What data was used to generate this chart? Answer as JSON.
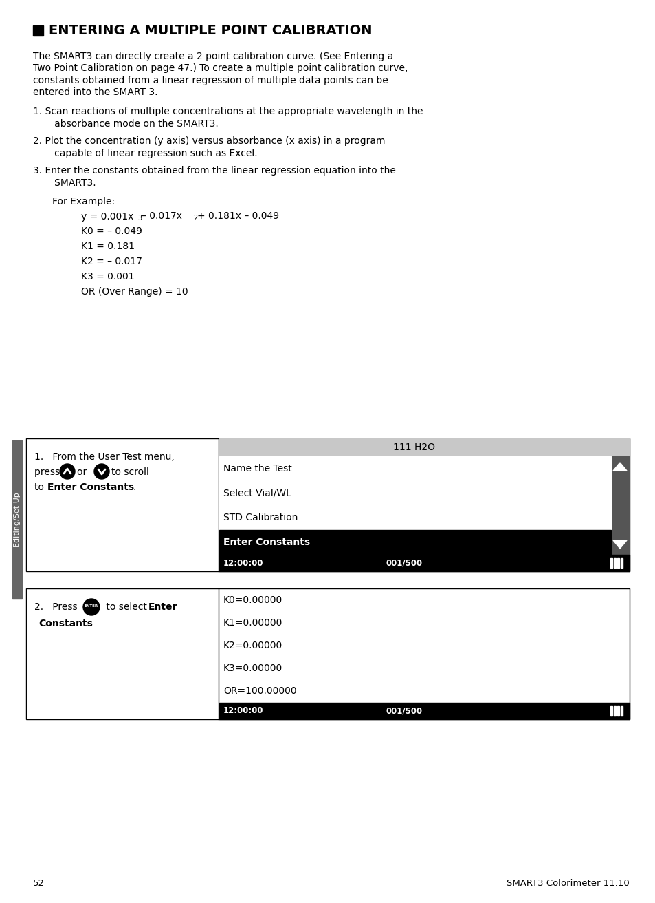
{
  "title": "ENTERING A MULTIPLE POINT CALIBRATION",
  "bg_color": "#ffffff",
  "text_color": "#000000",
  "page_number": "52",
  "footer_right": "SMART3 Colorimeter 11.10",
  "sidebar_label": "Editing/Set Up",
  "intro_text": [
    "The SMART3 can directly create a 2 point calibration curve. (See Entering a",
    "Two Point Calibration on page 47.) To create a multiple point calibration curve,",
    "constants obtained from a linear regression of multiple data points can be",
    "entered into the SMART 3."
  ],
  "step1_lines": [
    "1. Scan reactions of multiple concentrations at the appropriate wavelength in the",
    "   absorbance mode on the SMART3."
  ],
  "step2_lines": [
    "2. Plot the concentration (y axis) versus absorbance (x axis) in a program",
    "   capable of linear regression such as Excel."
  ],
  "step3_lines": [
    "3. Enter the constants obtained from the linear regression equation into the",
    "   SMART3."
  ],
  "example_label": "For Example:",
  "constants": [
    "K0 = – 0.049",
    "K1 = 0.181",
    "K2 = – 0.017",
    "K3 = 0.001",
    "OR (Over Range) = 10"
  ],
  "table1_screen_title": "111 H2O",
  "table1_screen_title_bg": "#c8c8c8",
  "table1_screen_items": [
    "Name the Test",
    "Select Vial/WL",
    "STD Calibration",
    "Enter Constants"
  ],
  "table1_selected": "Enter Constants",
  "table2_screen_items": [
    "K0=0.00000",
    "K1=0.00000",
    "K2=0.00000",
    "K3=0.00000",
    "OR=100.00000"
  ],
  "status_time": "12:00:00",
  "status_count": "001/500"
}
